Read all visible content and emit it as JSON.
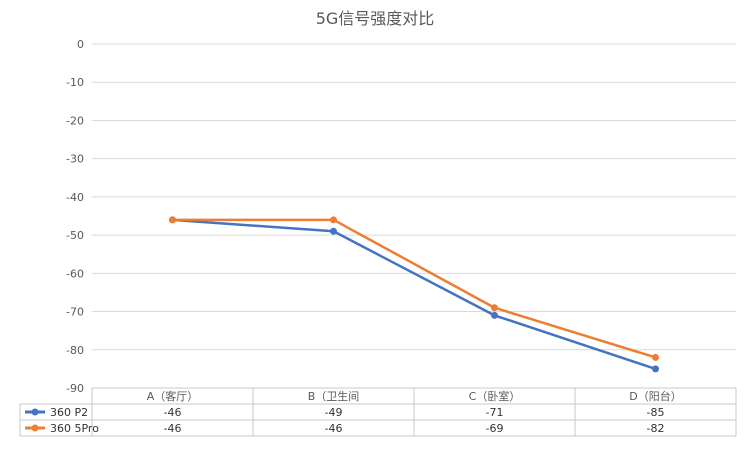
{
  "chart_data": {
    "type": "line",
    "title": "5G信号强度对比",
    "categories": [
      "A（客厅）",
      "B（卫生间",
      "C（卧室）",
      "D（阳台）"
    ],
    "y_ticks": [
      "0",
      "-10",
      "-20",
      "-30",
      "-40",
      "-50",
      "-60",
      "-70",
      "-80",
      "-90"
    ],
    "ylim": [
      -90,
      0
    ],
    "grid": true,
    "legend": "data-table-left",
    "series": [
      {
        "name": "360 P2",
        "values": [
          -46,
          -49,
          -71,
          -85
        ],
        "labels": [
          "-46",
          "-49",
          "-71",
          "-85"
        ],
        "color": "#4472C4"
      },
      {
        "name": "360 5Pro",
        "values": [
          -46,
          -46,
          -69,
          -82
        ],
        "labels": [
          "-46",
          "-46",
          "-69",
          "-82"
        ],
        "color": "#ED7D31"
      }
    ]
  }
}
